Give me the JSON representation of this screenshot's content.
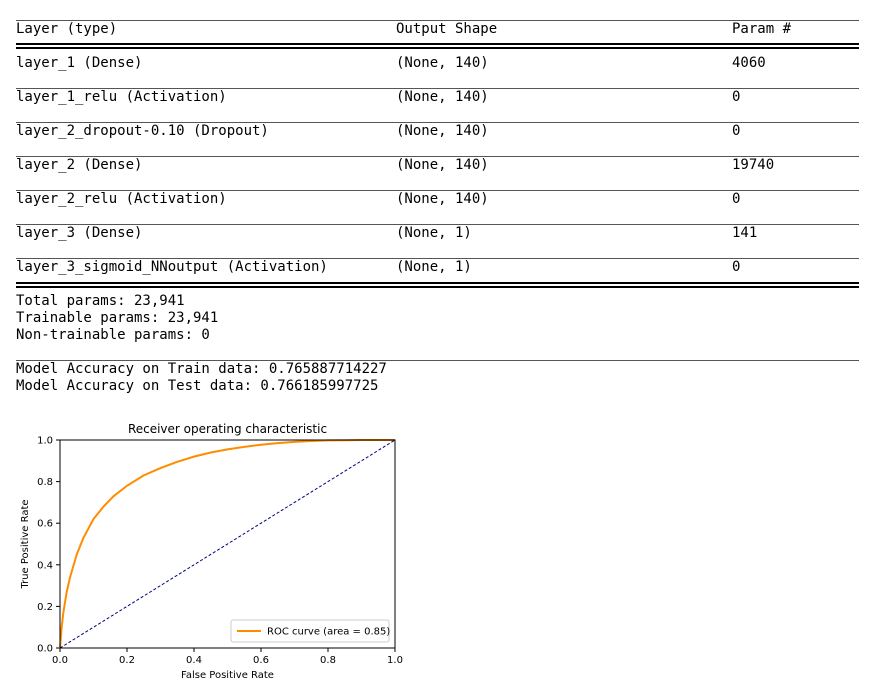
{
  "summary": {
    "headers": {
      "layer": "Layer (type)",
      "shape": "Output Shape",
      "params": "Param #"
    },
    "double_rule": "=============================================================================================",
    "rows": [
      {
        "layer": "layer_1 (Dense)",
        "shape": "(None, 140)",
        "params": "4060"
      },
      {
        "layer": "layer_1_relu (Activation)",
        "shape": "(None, 140)",
        "params": "0"
      },
      {
        "layer": "layer_2_dropout-0.10 (Dropout)",
        "shape": "(None, 140)",
        "params": "0"
      },
      {
        "layer": "layer_2 (Dense)",
        "shape": "(None, 140)",
        "params": "19740"
      },
      {
        "layer": "layer_2_relu (Activation)",
        "shape": "(None, 140)",
        "params": "0"
      },
      {
        "layer": "layer_3 (Dense)",
        "shape": "(None, 1)",
        "params": "141"
      },
      {
        "layer": "layer_3_sigmoid_NNoutput (Activation)",
        "shape": "(None, 1)",
        "params": "0"
      }
    ],
    "totals": {
      "total": "Total params: 23,941",
      "trainable": "Trainable params: 23,941",
      "non_trainable": "Non-trainable params: 0"
    }
  },
  "accuracy": {
    "train": "Model Accuracy on Train data: 0.765887714227",
    "test": "Model Accuracy on Test data: 0.766185997725"
  },
  "chart_data": {
    "type": "line",
    "title": "Receiver operating characteristic",
    "xlabel": "False Positive Rate",
    "ylabel": "True Positive Rate",
    "xlim": [
      0.0,
      1.0
    ],
    "ylim": [
      0.0,
      1.0
    ],
    "xticks": [
      "0.0",
      "0.2",
      "0.4",
      "0.6",
      "0.8",
      "1.0"
    ],
    "yticks": [
      "0.0",
      "0.2",
      "0.4",
      "0.6",
      "0.8",
      "1.0"
    ],
    "grid": false,
    "legend_position": "lower-right",
    "series": [
      {
        "name": "ROC curve (area = 0.85)",
        "color": "#ff8c00",
        "style": "solid",
        "x": [
          0.0,
          0.005,
          0.01,
          0.02,
          0.03,
          0.05,
          0.07,
          0.1,
          0.13,
          0.16,
          0.2,
          0.25,
          0.3,
          0.35,
          0.4,
          0.45,
          0.5,
          0.55,
          0.6,
          0.65,
          0.7,
          0.75,
          0.8,
          0.85,
          0.9,
          0.95,
          1.0
        ],
        "y": [
          0.0,
          0.1,
          0.17,
          0.27,
          0.34,
          0.45,
          0.53,
          0.62,
          0.68,
          0.73,
          0.78,
          0.83,
          0.865,
          0.895,
          0.92,
          0.94,
          0.955,
          0.967,
          0.977,
          0.985,
          0.991,
          0.995,
          0.998,
          0.999,
          1.0,
          1.0,
          1.0
        ]
      },
      {
        "color": "#000080",
        "style": "dashed",
        "x": [
          0.0,
          1.0
        ],
        "y": [
          0.0,
          1.0
        ]
      }
    ]
  }
}
